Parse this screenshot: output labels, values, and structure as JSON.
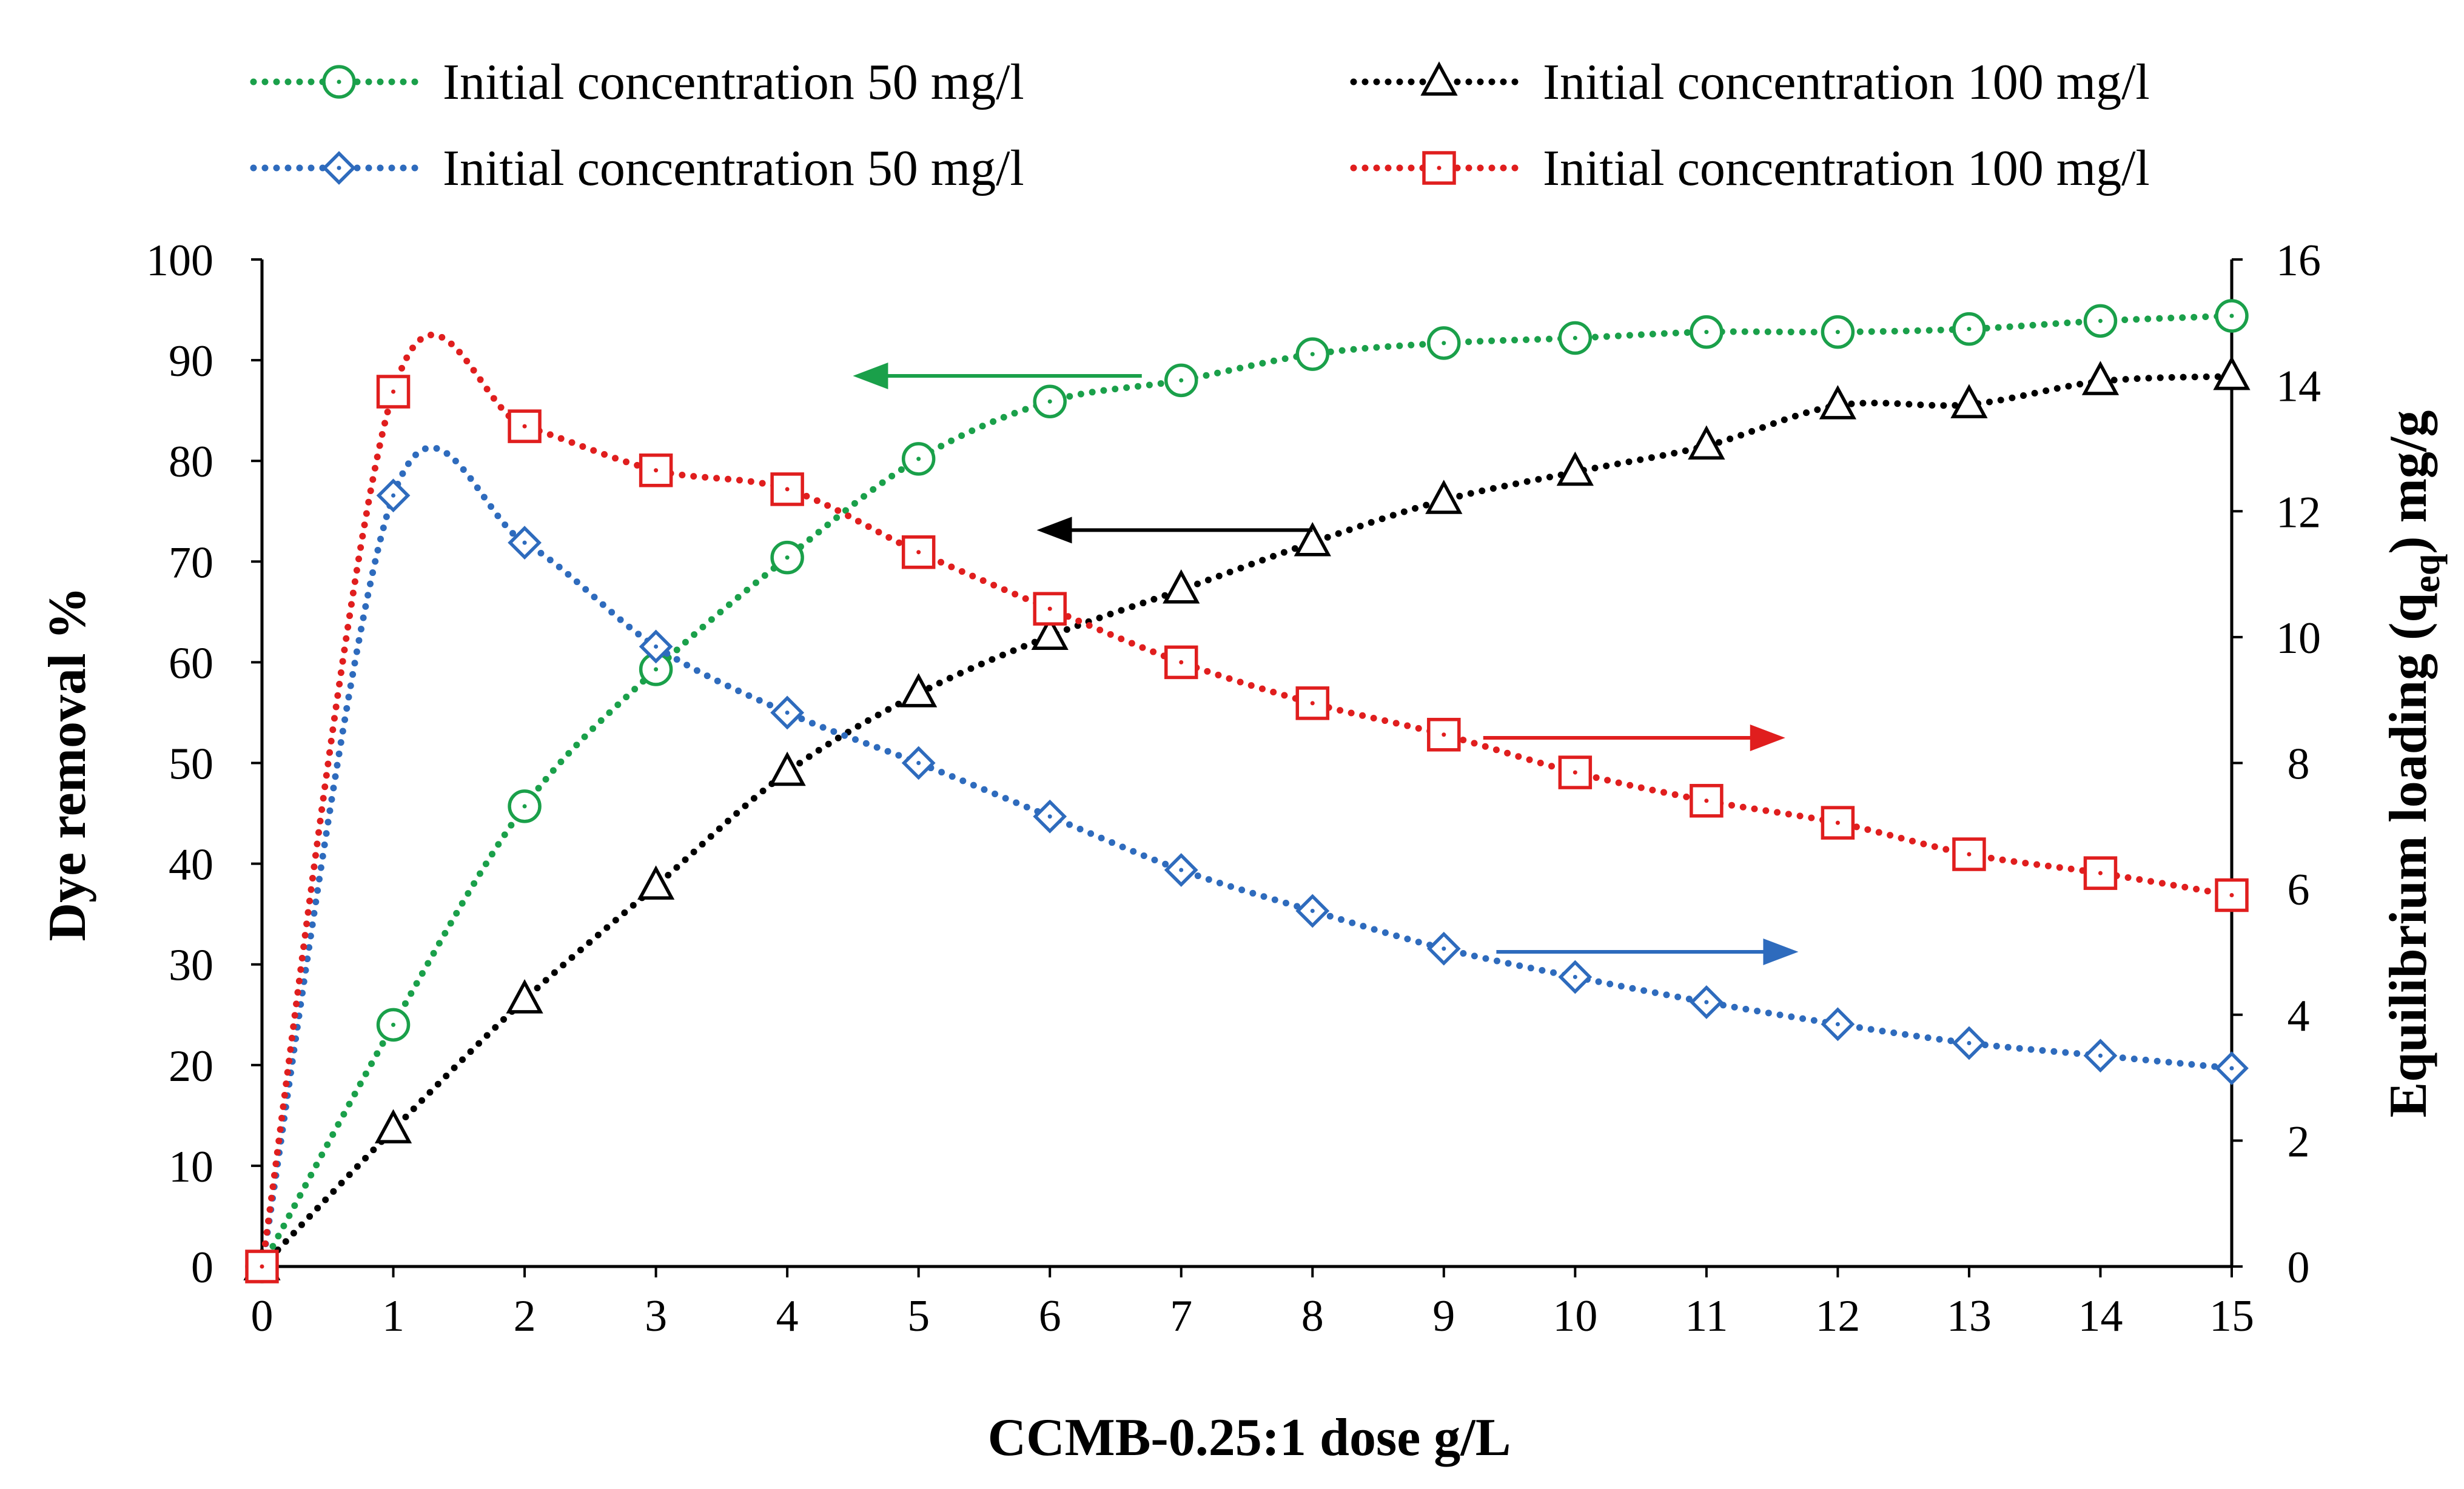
{
  "chart_data": {
    "type": "line",
    "title": "",
    "xlabel": "CCMB-0.25:1 dose g/L",
    "ylabel_left": "Dye removal %",
    "ylabel_right_main": "Equilibrium loading (q",
    "ylabel_right_sub": "eq",
    "ylabel_right_end": ") mg/g",
    "xlim": [
      0,
      15
    ],
    "ylim_left": [
      0,
      100
    ],
    "ylim_right": [
      0,
      16
    ],
    "x_ticks": [
      "0",
      "1",
      "2",
      "3",
      "4",
      "5",
      "6",
      "7",
      "8",
      "9",
      "10",
      "11",
      "12",
      "13",
      "14",
      "15"
    ],
    "y_left_ticks": [
      "0",
      "10",
      "20",
      "30",
      "40",
      "50",
      "60",
      "70",
      "80",
      "90",
      "100"
    ],
    "y_right_ticks": [
      "0",
      "2",
      "4",
      "6",
      "8",
      "10",
      "12",
      "14",
      "16"
    ],
    "x": [
      0,
      1,
      2,
      3,
      4,
      5,
      6,
      7,
      8,
      9,
      10,
      11,
      12,
      13,
      14,
      15
    ],
    "series": [
      {
        "name": "Initial concentration 50 mg/l",
        "axis": "left",
        "marker": "circle",
        "color": "#1aa04a",
        "values": [
          0,
          24,
          45.7,
          59.3,
          70.4,
          80.2,
          85.9,
          88,
          90.6,
          91.7,
          92.2,
          92.8,
          92.8,
          93.1,
          93.9,
          94.4
        ]
      },
      {
        "name": "Initial concentration 100 mg/l",
        "axis": "left",
        "marker": "triangle",
        "color": "#000000",
        "values": [
          0,
          13.6,
          26.5,
          37.8,
          49.1,
          56.9,
          62.6,
          67.2,
          71.9,
          76.1,
          78.9,
          81.5,
          85.5,
          85.6,
          87.9,
          88.4
        ]
      },
      {
        "name": "Initial concentration 50 mg/l",
        "axis": "right",
        "marker": "diamond",
        "color": "#2e6bbd",
        "values": [
          0,
          12.25,
          11.5,
          9.85,
          8.8,
          8.0,
          7.15,
          6.3,
          5.65,
          5.05,
          4.6,
          4.2,
          3.85,
          3.55,
          3.35,
          3.15
        ]
      },
      {
        "name": "Initial concentration 100 mg/l",
        "axis": "right",
        "marker": "square",
        "color": "#e01e1e",
        "values": [
          0,
          13.9,
          13.35,
          12.65,
          12.35,
          11.35,
          10.45,
          9.6,
          8.95,
          8.45,
          7.85,
          7.4,
          7.05,
          6.55,
          6.25,
          5.9
        ]
      }
    ],
    "annotations": [
      {
        "type": "arrow",
        "direction": "left",
        "color": "#1aa04a",
        "x_from": 6.7,
        "x_to": 4.5,
        "y_right": 14.15
      },
      {
        "type": "arrow",
        "direction": "left",
        "color": "#000000",
        "x_from": 8.0,
        "x_to": 5.9,
        "y_right": 11.7
      },
      {
        "type": "arrow",
        "direction": "right",
        "color": "#e01e1e",
        "x_from": 9.3,
        "x_to": 11.6,
        "y_right": 8.4
      },
      {
        "type": "arrow",
        "direction": "right",
        "color": "#2e6bbd",
        "x_from": 9.4,
        "x_to": 11.7,
        "y_right": 5.0
      }
    ],
    "legend_position": "top",
    "grid": false
  }
}
